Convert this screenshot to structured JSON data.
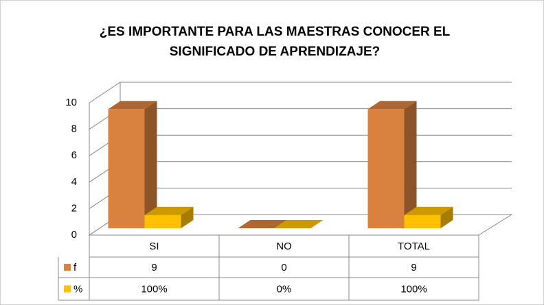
{
  "chart_data": {
    "type": "bar3d",
    "title": [
      "¿ES IMPORTANTE PARA LAS MAESTRAS CONOCER EL",
      "SIGNIFICADO DE APRENDIZAJE?"
    ],
    "categories": [
      "SI",
      "NO",
      "TOTAL"
    ],
    "series": [
      {
        "name": "f",
        "color": "#d9813e",
        "values": [
          9,
          0,
          9
        ]
      },
      {
        "name": "%",
        "color": "#ffc000",
        "values": [
          1,
          0,
          1
        ],
        "value_labels": [
          "100%",
          "0%",
          "100%"
        ]
      }
    ],
    "ylim": [
      0,
      10
    ],
    "yticks": [
      0,
      2,
      4,
      6,
      8,
      10
    ],
    "grid": true,
    "legend": "table"
  }
}
